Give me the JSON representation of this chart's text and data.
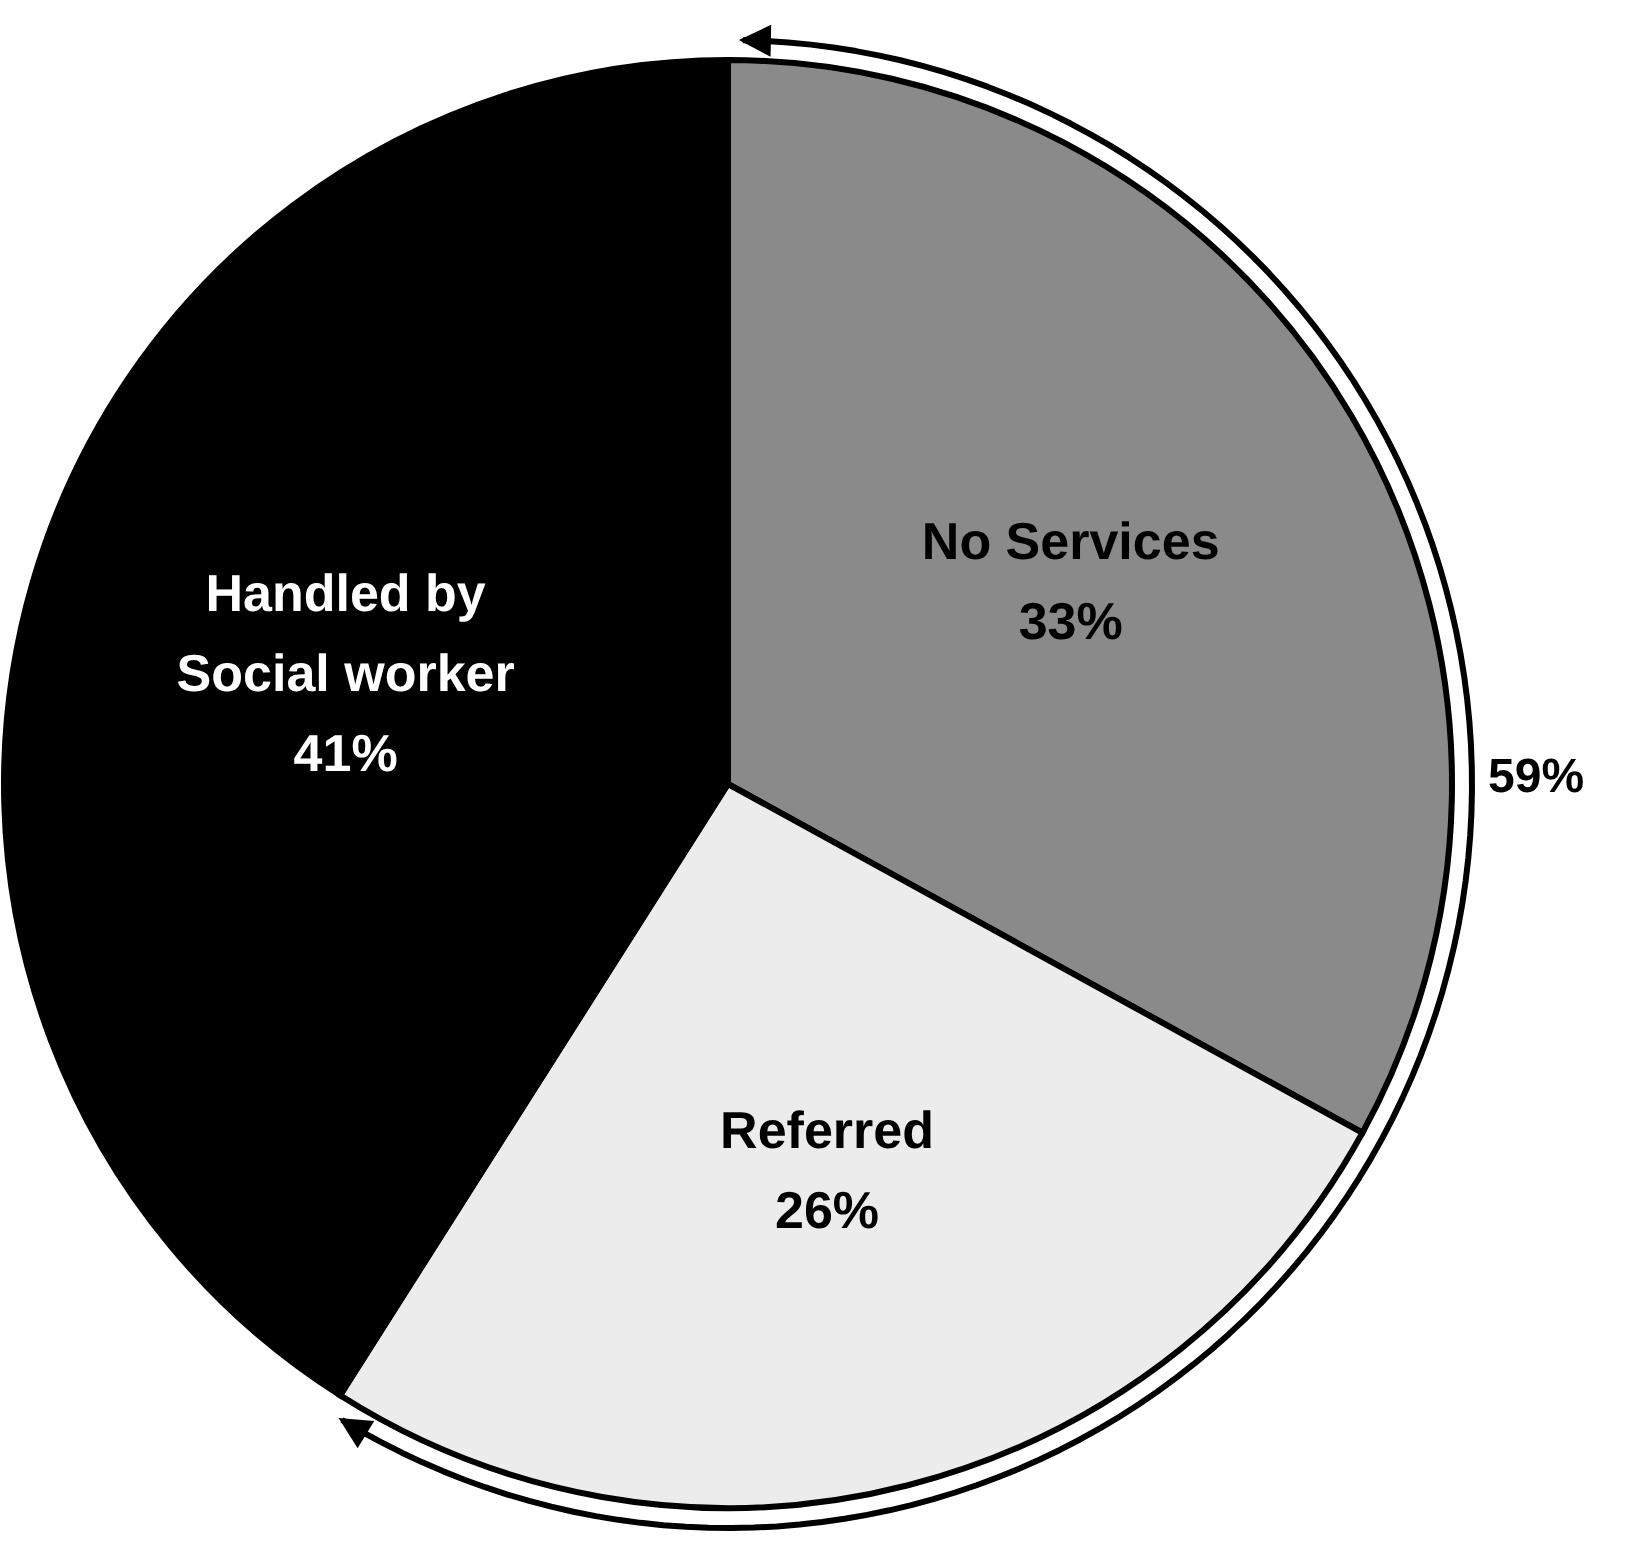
{
  "chart_data": {
    "type": "pie",
    "categories": [
      "No Services",
      "Referred",
      "Handled by Social worker"
    ],
    "values": [
      33,
      26,
      41
    ],
    "colors": [
      "#8a8a8a",
      "#ececec",
      "#000000"
    ],
    "value_labels": [
      "33%",
      "26%",
      "41%"
    ],
    "annotations": [
      "59%"
    ]
  }
}
